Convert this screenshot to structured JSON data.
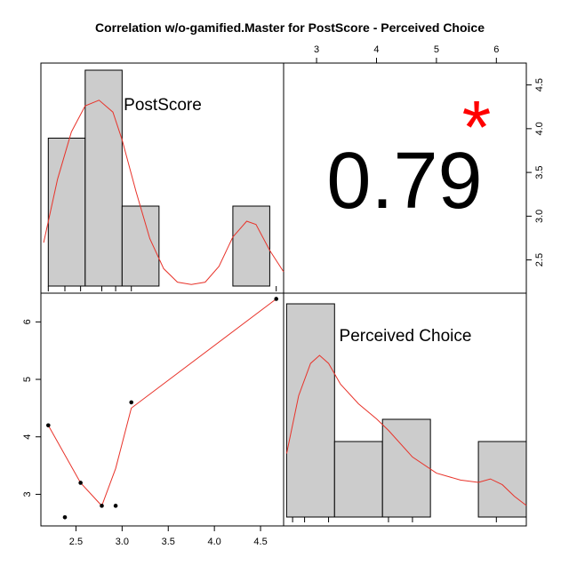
{
  "colors": {
    "bar_fill": "#cccccc",
    "curve": "#e8332a",
    "star": "#ff0000",
    "frame": "#000000"
  },
  "chart_data": {
    "type": "scatter-matrix",
    "title": "Correlation w/o-gamified.Master for PostScore - Perceived Choice",
    "variables": [
      "PostScore",
      "Perceived Choice"
    ],
    "correlation": {
      "value_label": "0.79",
      "significance": "*"
    },
    "postscore_hist": {
      "label": "PostScore",
      "bins": [
        [
          2.2,
          2.6
        ],
        [
          2.6,
          3.0
        ],
        [
          3.0,
          3.4
        ],
        [
          4.2,
          4.6
        ]
      ],
      "counts": [
        1.85,
        2.7,
        1.0,
        1.0
      ],
      "rug": [
        2.2,
        2.38,
        2.55,
        2.78,
        2.93,
        3.1,
        4.67
      ],
      "density": [
        [
          2.15,
          0.55
        ],
        [
          2.3,
          1.35
        ],
        [
          2.45,
          1.95
        ],
        [
          2.6,
          2.28
        ],
        [
          2.75,
          2.35
        ],
        [
          2.9,
          2.2
        ],
        [
          3.0,
          1.85
        ],
        [
          3.15,
          1.2
        ],
        [
          3.3,
          0.6
        ],
        [
          3.45,
          0.22
        ],
        [
          3.6,
          0.05
        ],
        [
          3.75,
          0.02
        ],
        [
          3.9,
          0.05
        ],
        [
          4.05,
          0.25
        ],
        [
          4.2,
          0.62
        ],
        [
          4.35,
          0.82
        ],
        [
          4.45,
          0.78
        ],
        [
          4.6,
          0.45
        ],
        [
          4.75,
          0.18
        ]
      ]
    },
    "choice_hist": {
      "label": "Perceived Choice",
      "bins": [
        [
          2.5,
          3.3
        ],
        [
          3.3,
          4.1
        ],
        [
          4.1,
          4.9
        ],
        [
          5.7,
          6.5
        ]
      ],
      "counts": [
        2.4,
        0.85,
        1.1,
        0.85
      ],
      "rug": [
        2.6,
        2.8,
        3.2,
        4.2,
        4.6,
        6.0
      ],
      "density": [
        [
          2.5,
          0.55
        ],
        [
          2.7,
          1.05
        ],
        [
          2.9,
          1.33
        ],
        [
          3.05,
          1.4
        ],
        [
          3.2,
          1.33
        ],
        [
          3.4,
          1.15
        ],
        [
          3.7,
          0.98
        ],
        [
          4.0,
          0.85
        ],
        [
          4.2,
          0.75
        ],
        [
          4.6,
          0.52
        ],
        [
          5.0,
          0.38
        ],
        [
          5.4,
          0.32
        ],
        [
          5.7,
          0.3
        ],
        [
          5.9,
          0.33
        ],
        [
          6.1,
          0.28
        ],
        [
          6.3,
          0.18
        ],
        [
          6.5,
          0.1
        ]
      ]
    },
    "scatter": {
      "x_label": "PostScore",
      "y_label": "Perceived Choice",
      "points": [
        [
          2.2,
          4.2
        ],
        [
          2.38,
          2.6
        ],
        [
          2.55,
          3.2
        ],
        [
          2.78,
          2.8
        ],
        [
          2.93,
          2.8
        ],
        [
          3.1,
          4.6
        ],
        [
          4.67,
          6.4
        ]
      ],
      "smooth": [
        [
          2.2,
          4.2
        ],
        [
          2.55,
          3.2
        ],
        [
          2.78,
          2.8
        ],
        [
          2.93,
          3.45
        ],
        [
          3.1,
          4.5
        ],
        [
          4.67,
          6.4
        ]
      ],
      "x_ticks": [
        "2.5",
        "3.0",
        "3.5",
        "4.0",
        "4.5"
      ],
      "x_tick_values": [
        2.5,
        3.0,
        3.5,
        4.0,
        4.5
      ],
      "y_ticks": [
        "3",
        "4",
        "5",
        "6"
      ],
      "y_tick_values": [
        3,
        4,
        5,
        6
      ],
      "xlim": [
        2.12,
        4.75
      ],
      "ylim": [
        2.45,
        6.5
      ]
    },
    "top_axis": {
      "ticks": [
        "3",
        "4",
        "5",
        "6"
      ],
      "values": [
        3,
        4,
        5,
        6
      ],
      "range": [
        2.45,
        6.5
      ]
    },
    "right_axis": {
      "ticks": [
        "2.5",
        "3.0",
        "3.5",
        "4.0",
        "4.5"
      ],
      "values": [
        2.5,
        3.0,
        3.5,
        4.0,
        4.5
      ],
      "range": [
        2.12,
        4.75
      ]
    }
  }
}
